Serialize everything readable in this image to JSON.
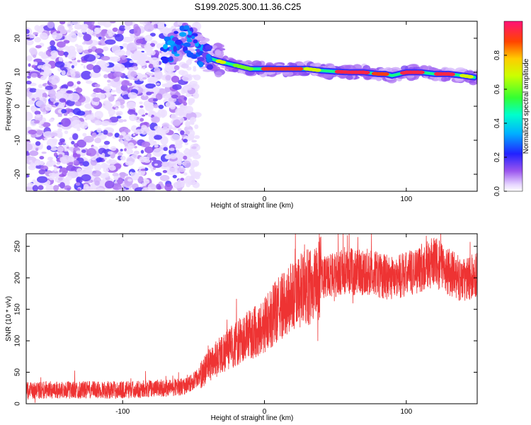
{
  "title": "S199.2025.300.11.36.C25",
  "chart_data": [
    {
      "type": "heatmap",
      "name": "spectrogram",
      "xlabel": "Height of straight line (km)",
      "ylabel": "Frequency (Hz)",
      "xlim": [
        -168,
        150
      ],
      "ylim": [
        -25,
        25
      ],
      "xticks": [
        -100,
        0,
        100
      ],
      "yticks": [
        20,
        10,
        0,
        -10,
        -20
      ],
      "colorbar": {
        "label": "Normalized spectral amplitude",
        "range": [
          0,
          1
        ],
        "ticks": [
          "0.0",
          "0.2",
          "0.4",
          "0.6",
          "0.8"
        ]
      },
      "noise_region_x": [
        -168,
        -55
      ],
      "ridge": {
        "x": [
          -66,
          -55,
          -45,
          -38,
          -30,
          -20,
          -10,
          0,
          10,
          20,
          30,
          40,
          50,
          60,
          70,
          80,
          85,
          90,
          95,
          100,
          110,
          120,
          130,
          140,
          148
        ],
        "frequency": [
          17,
          20,
          16,
          14,
          13,
          12,
          11,
          11,
          11,
          11,
          11,
          10.5,
          10.2,
          10,
          10,
          9.5,
          9.5,
          9,
          9.5,
          10,
          10,
          9.5,
          9.5,
          9,
          8.5
        ]
      }
    },
    {
      "type": "line",
      "name": "snr",
      "xlabel": "Height of straight line (km)",
      "ylabel": "SNR (10 * v/v)",
      "xlim": [
        -168,
        150
      ],
      "ylim": [
        0,
        270
      ],
      "xticks": [
        -100,
        0,
        100
      ],
      "yticks": [
        0,
        50,
        100,
        150,
        200,
        250
      ],
      "color": "#ee3333",
      "trend": {
        "x": [
          -168,
          -150,
          -100,
          -70,
          -55,
          -45,
          -40,
          -30,
          -20,
          -10,
          0,
          10,
          20,
          30,
          40,
          50,
          60,
          70,
          80,
          90,
          100,
          110,
          120,
          130,
          140,
          150
        ],
        "snr": [
          20,
          22,
          22,
          25,
          28,
          45,
          60,
          80,
          95,
          110,
          125,
          150,
          170,
          185,
          200,
          205,
          210,
          210,
          205,
          200,
          205,
          215,
          225,
          210,
          195,
          205
        ]
      }
    }
  ]
}
